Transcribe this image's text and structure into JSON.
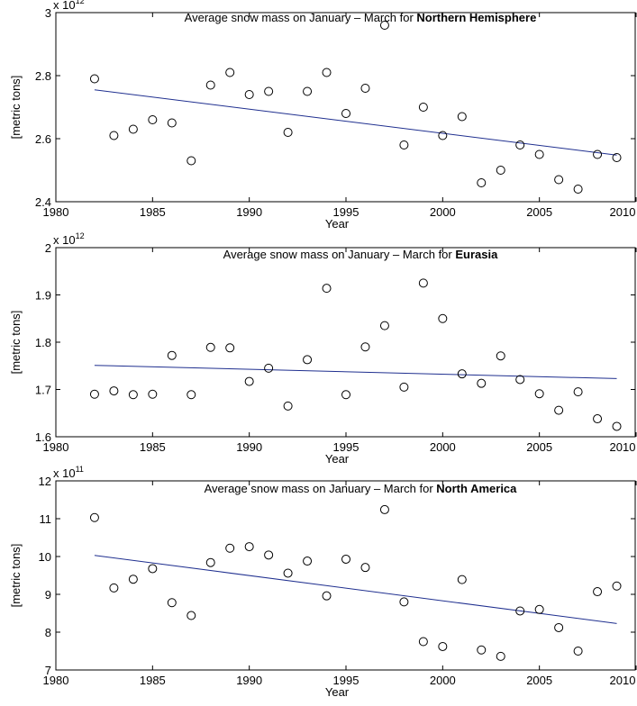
{
  "chart_data": [
    {
      "type": "scatter",
      "title_prefix": "Average snow mass on January – March for ",
      "title_region": "Northern Hemisphere",
      "xlabel": "Year",
      "ylabel": "[metric tons]",
      "multiplier": {
        "base": "x 10",
        "exp": "12"
      },
      "xlim": [
        1980,
        2010
      ],
      "ylim": [
        2.4,
        3.0
      ],
      "xticks": [
        "1980",
        "1985",
        "1990",
        "1995",
        "2000",
        "2005",
        "2010"
      ],
      "yticks": [
        "2.4",
        "2.6",
        "2.8",
        "3"
      ],
      "x": [
        1982,
        1983,
        1984,
        1985,
        1986,
        1987,
        1988,
        1989,
        1990,
        1991,
        1992,
        1993,
        1994,
        1995,
        1996,
        1997,
        1998,
        1999,
        2000,
        2001,
        2002,
        2003,
        2004,
        2005,
        2006,
        2007,
        2008,
        2009
      ],
      "y": [
        2.79,
        2.61,
        2.63,
        2.66,
        2.65,
        2.53,
        2.77,
        2.81,
        2.74,
        2.75,
        2.62,
        2.75,
        2.81,
        2.68,
        2.76,
        2.96,
        2.58,
        2.7,
        2.61,
        2.67,
        2.46,
        2.5,
        2.58,
        2.55,
        2.47,
        2.44,
        2.55,
        2.54
      ],
      "trend": {
        "x": [
          1982,
          2009
        ],
        "y": [
          2.755,
          2.548
        ]
      },
      "marker_color": "#000000",
      "trend_color": "#1f2f8f"
    },
    {
      "type": "scatter",
      "title_prefix": "Average snow mass on January – March for ",
      "title_region": "Eurasia",
      "xlabel": "Year",
      "ylabel": "[metric tons]",
      "multiplier": {
        "base": "x 10",
        "exp": "12"
      },
      "xlim": [
        1980,
        2010
      ],
      "ylim": [
        1.6,
        2.0
      ],
      "xticks": [
        "1980",
        "1985",
        "1990",
        "1995",
        "2000",
        "2005",
        "2010"
      ],
      "yticks": [
        "1.6",
        "1.7",
        "1.8",
        "1.9",
        "2"
      ],
      "x": [
        1982,
        1983,
        1984,
        1985,
        1986,
        1987,
        1988,
        1989,
        1990,
        1991,
        1992,
        1993,
        1994,
        1995,
        1996,
        1997,
        1998,
        1999,
        2000,
        2001,
        2002,
        2003,
        2004,
        2005,
        2006,
        2007,
        2008,
        2009
      ],
      "y": [
        1.69,
        1.697,
        1.689,
        1.69,
        1.772,
        1.689,
        1.789,
        1.788,
        1.717,
        1.745,
        1.665,
        1.763,
        1.914,
        1.689,
        1.79,
        1.835,
        1.705,
        1.925,
        1.85,
        1.733,
        1.713,
        1.771,
        1.721,
        1.691,
        1.656,
        1.695,
        1.638,
        1.622
      ],
      "trend": {
        "x": [
          1982,
          2009
        ],
        "y": [
          1.751,
          1.723
        ]
      },
      "marker_color": "#000000",
      "trend_color": "#1f2f8f"
    },
    {
      "type": "scatter",
      "title_prefix": "Average snow mass on January – March for ",
      "title_region": "North America",
      "xlabel": "Year",
      "ylabel": "[metric tons]",
      "multiplier": {
        "base": "x 10",
        "exp": "11"
      },
      "xlim": [
        1980,
        2010
      ],
      "ylim": [
        7,
        12
      ],
      "xticks": [
        "1980",
        "1985",
        "1990",
        "1995",
        "2000",
        "2005",
        "2010"
      ],
      "yticks": [
        "7",
        "8",
        "9",
        "10",
        "11",
        "12"
      ],
      "x": [
        1982,
        1983,
        1984,
        1985,
        1986,
        1987,
        1988,
        1989,
        1990,
        1991,
        1992,
        1993,
        1994,
        1995,
        1996,
        1997,
        1998,
        1999,
        2000,
        2001,
        2002,
        2003,
        2004,
        2005,
        2006,
        2007,
        2008,
        2009
      ],
      "y": [
        11.03,
        9.17,
        9.4,
        9.68,
        8.78,
        8.44,
        9.84,
        10.22,
        10.26,
        10.04,
        9.56,
        9.88,
        8.96,
        9.93,
        9.71,
        11.24,
        8.8,
        7.75,
        7.62,
        9.39,
        7.53,
        7.36,
        8.56,
        8.6,
        8.12,
        7.5,
        9.07,
        9.22
      ],
      "trend": {
        "x": [
          1982,
          2009
        ],
        "y": [
          10.03,
          8.23
        ]
      },
      "marker_color": "#000000",
      "trend_color": "#1f2f8f"
    }
  ]
}
